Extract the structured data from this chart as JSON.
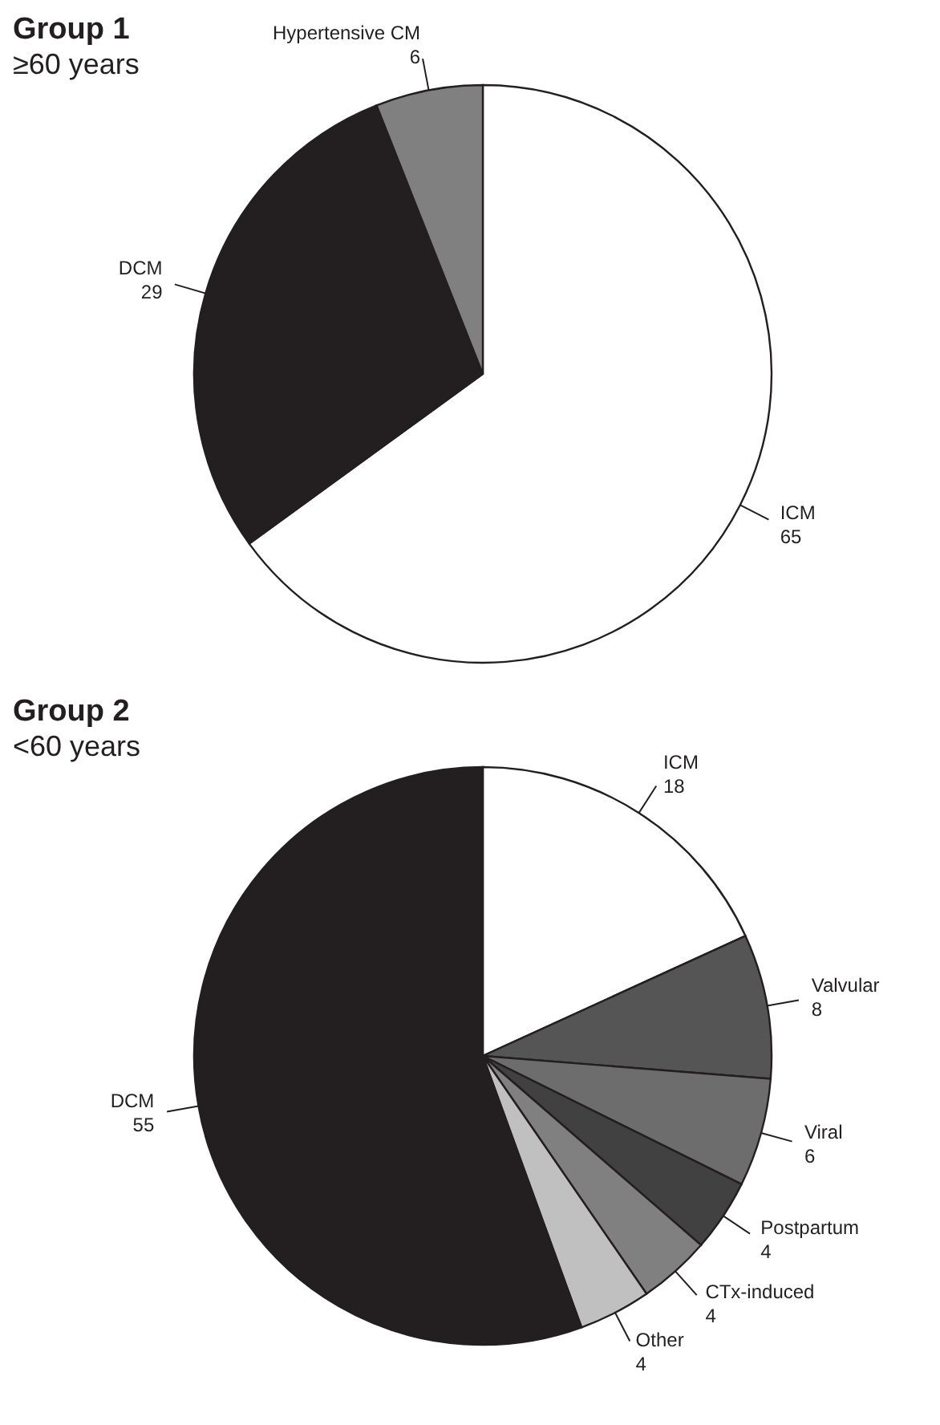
{
  "chart_data": [
    {
      "type": "pie",
      "title": "Group 1",
      "subtitle": "≥60 years",
      "categories": [
        "ICM",
        "DCM",
        "Hypertensive CM"
      ],
      "values": [
        65,
        29,
        6
      ],
      "colors": [
        "#ffffff",
        "#231f20",
        "#808080"
      ],
      "data_labels": true,
      "legend": false
    },
    {
      "type": "pie",
      "title": "Group 2",
      "subtitle": "<60 years",
      "categories": [
        "ICM",
        "Valvular",
        "Viral",
        "Postpartum",
        "CTx-induced",
        "Other",
        "DCM"
      ],
      "values": [
        18,
        8,
        6,
        4,
        4,
        4,
        55
      ],
      "colors": [
        "#ffffff",
        "#555555",
        "#6d6d6e",
        "#414141",
        "#808080",
        "#c0c0c0",
        "#231f20"
      ],
      "data_labels": true,
      "legend": false
    }
  ]
}
